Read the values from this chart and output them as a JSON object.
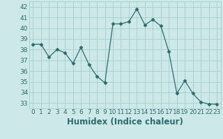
{
  "x": [
    0,
    1,
    2,
    3,
    4,
    5,
    6,
    7,
    8,
    9,
    10,
    11,
    12,
    13,
    14,
    15,
    16,
    17,
    18,
    19,
    20,
    21,
    22,
    23
  ],
  "y": [
    38.5,
    38.5,
    37.3,
    38.0,
    37.7,
    36.7,
    38.2,
    36.6,
    35.5,
    34.9,
    40.4,
    40.4,
    40.6,
    41.8,
    40.3,
    40.8,
    40.2,
    37.8,
    33.9,
    35.1,
    33.9,
    33.1,
    32.9,
    32.9
  ],
  "xlabel": "Humidex (Indice chaleur)",
  "xlim": [
    -0.5,
    23.5
  ],
  "ylim": [
    32.5,
    42.5
  ],
  "yticks": [
    33,
    34,
    35,
    36,
    37,
    38,
    39,
    40,
    41,
    42
  ],
  "xticks": [
    0,
    1,
    2,
    3,
    4,
    5,
    6,
    7,
    8,
    9,
    10,
    11,
    12,
    13,
    14,
    15,
    16,
    17,
    18,
    19,
    20,
    21,
    22,
    23
  ],
  "line_color": "#2e6b6b",
  "marker": "D",
  "marker_size": 2.5,
  "bg_color": "#cce8e8",
  "grid_color": "#a8cccc",
  "tick_label_fontsize": 6.5,
  "xlabel_fontsize": 8.5
}
